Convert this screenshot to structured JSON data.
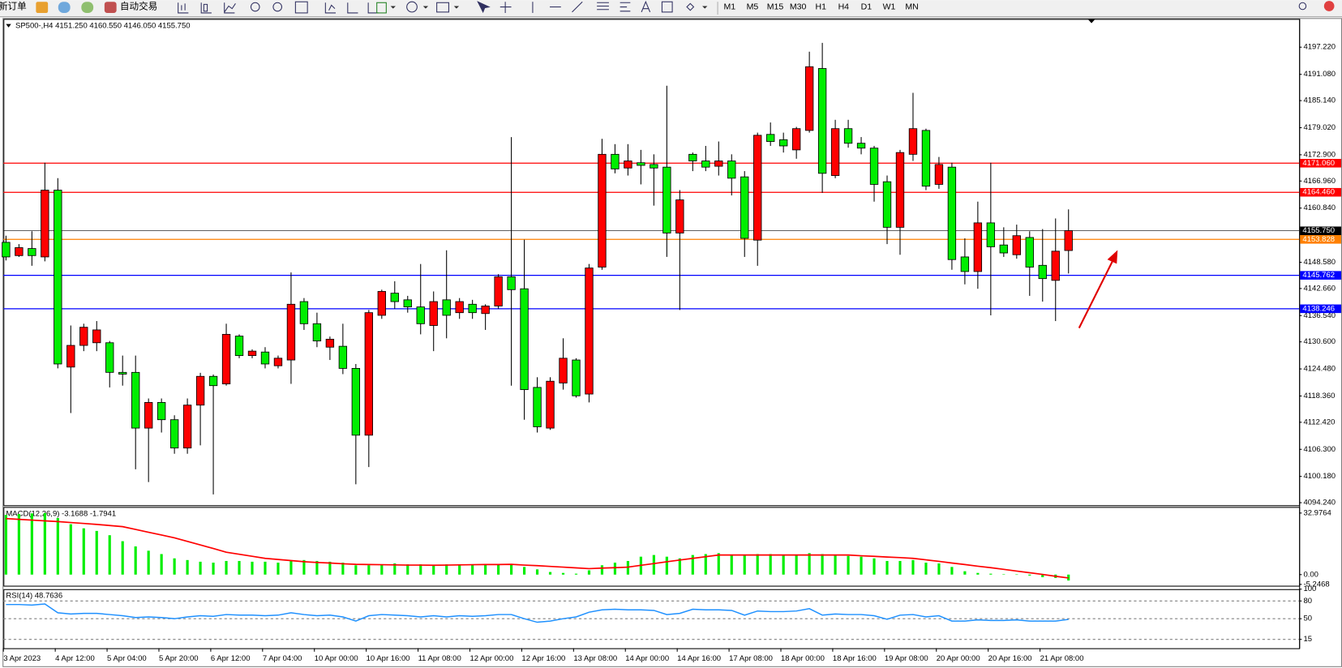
{
  "toolbar": {
    "items": [
      "新订单",
      "自动交易"
    ],
    "timeframes": [
      "M1",
      "M5",
      "M15",
      "M30",
      "H1",
      "H4",
      "D1",
      "W1",
      "MN"
    ]
  },
  "chart_data": [
    {
      "type": "candlestick",
      "title": "SP500-,H4  4151.250 4160.550 4146.050 4155.750",
      "up_color": "#ff0000",
      "down_color": "#00ee00",
      "x": [
        "3 Apr 2023",
        null,
        null,
        null,
        "4 Apr 12:00",
        null,
        null,
        null,
        "5 Apr 04:00",
        null,
        null,
        null,
        "5 Apr 20:00",
        null,
        null,
        null,
        "6 Apr 12:00",
        null,
        null,
        null,
        "7 Apr 04:00",
        null,
        null,
        null,
        "10 Apr 00:00",
        null,
        null,
        null,
        "10 Apr 16:00",
        null,
        null,
        null,
        "11 Apr 08:00",
        null,
        null,
        null,
        "12 Apr 00:00",
        null,
        null,
        null,
        "12 Apr 16:00",
        null,
        null,
        null,
        "13 Apr 08:00",
        null,
        null,
        null,
        "14 Apr 00:00",
        null,
        null,
        null,
        "14 Apr 16:00",
        null,
        null,
        null,
        "17 Apr 08:00",
        null,
        null,
        null,
        "18 Apr 00:00",
        null,
        null,
        null,
        "18 Apr 16:00",
        null,
        null,
        null,
        "19 Apr 08:00",
        null,
        null,
        null,
        "20 Apr 00:00",
        null,
        null,
        null,
        "20 Apr 16:00",
        null,
        null,
        null,
        "21 Apr 08:00",
        null,
        null
      ],
      "open": [
        4153.1,
        4150.1,
        4151.7,
        4149.8,
        4164.9,
        4124.9,
        4129.8,
        4130.4,
        4130.4,
        4123.7,
        4123.7,
        4111.1,
        4116.9,
        4113.0,
        4106.6,
        4116.3,
        4122.8,
        4121.1,
        4131.9,
        4127.5,
        4128.3,
        4125.2,
        4126.5,
        4139.7,
        4134.7,
        4129.4,
        4129.6,
        4124.6,
        4109.5,
        4136.6,
        4141.6,
        4140.1,
        4138.5,
        4134.3,
        4140.1,
        4137.2,
        4139.1,
        4137.0,
        4138.7,
        4145.3,
        4142.6,
        4120.3,
        4111.1,
        4121.3,
        4126.5,
        4118.8,
        4147.5,
        4173.0,
        4169.9,
        4171.1,
        4170.7,
        4170.1,
        4155.2,
        4173.0,
        4171.5,
        4170.3,
        4171.5,
        4167.9,
        4153.6,
        4177.5,
        4176.3,
        4174.0,
        4178.4,
        4192.4,
        4168.2,
        4178.8,
        4175.5,
        4174.4,
        4166.8,
        4156.5,
        4173.0,
        4178.4,
        4166.2,
        4170.1,
        4149.8,
        4146.5,
        4157.5,
        4152.5,
        4150.3,
        4154.2,
        4147.9,
        4144.5,
        4151.25
      ],
      "high": [
        4154.6,
        4152.7,
        4155.6,
        4171.1,
        4167.6,
        4134.3,
        4134.7,
        4135.3,
        4130.8,
        4127.5,
        4127.5,
        4117.8,
        4117.8,
        4114.0,
        4117.8,
        4123.6,
        4123.2,
        4134.7,
        4132.3,
        4128.9,
        4129.4,
        4127.5,
        4146.3,
        4140.5,
        4137.2,
        4131.8,
        4134.7,
        4125.6,
        4137.8,
        4142.4,
        4144.3,
        4141.0,
        4148.2,
        4142.0,
        4151.3,
        4140.5,
        4140.1,
        4139.1,
        4145.9,
        4176.9,
        4153.7,
        4122.6,
        4122.6,
        4131.4,
        4126.9,
        4148.2,
        4176.5,
        4175.3,
        4175.3,
        4174.0,
        4173.0,
        4188.5,
        4164.9,
        4173.4,
        4174.9,
        4175.9,
        4173.0,
        4169.2,
        4177.9,
        4180.2,
        4177.9,
        4179.2,
        4196.2,
        4198.2,
        4180.8,
        4180.8,
        4176.9,
        4174.9,
        4168.2,
        4174.0,
        4186.9,
        4178.8,
        4172.4,
        4171.1,
        4154.0,
        4162.3,
        4171.1,
        4156.5,
        4157.1,
        4155.6,
        4156.1,
        4158.5,
        4160.55
      ],
      "low": [
        4149.0,
        4149.8,
        4147.8,
        4148.8,
        4124.6,
        4114.5,
        4128.5,
        4128.5,
        4120.3,
        4120.7,
        4101.8,
        4098.9,
        4110.1,
        4105.3,
        4105.3,
        4107.2,
        4096.1,
        4120.7,
        4126.9,
        4126.9,
        4124.6,
        4124.6,
        4121.1,
        4133.3,
        4129.4,
        4126.5,
        4123.3,
        4098.4,
        4102.3,
        4135.8,
        4138.1,
        4137.2,
        4132.3,
        4128.5,
        4131.4,
        4135.8,
        4135.8,
        4133.3,
        4138.1,
        4120.7,
        4113.0,
        4110.1,
        4110.7,
        4119.8,
        4118.0,
        4116.9,
        4146.9,
        4168.7,
        4168.2,
        4166.2,
        4161.4,
        4149.8,
        4137.8,
        4169.2,
        4169.2,
        4168.2,
        4163.7,
        4149.8,
        4147.8,
        4174.9,
        4173.4,
        4172.0,
        4177.9,
        4164.3,
        4167.6,
        4174.5,
        4173.0,
        4162.3,
        4152.7,
        4150.3,
        4171.5,
        4164.9,
        4165.2,
        4146.9,
        4143.6,
        4142.6,
        4136.6,
        4149.8,
        4149.4,
        4141.0,
        4139.7,
        4135.3,
        4146.05
      ],
      "close": [
        4149.8,
        4151.9,
        4150.1,
        4164.9,
        4125.6,
        4129.8,
        4133.9,
        4133.3,
        4123.7,
        4123.3,
        4111.1,
        4116.9,
        4113.0,
        4106.6,
        4116.3,
        4122.8,
        4120.7,
        4132.3,
        4127.5,
        4128.5,
        4125.6,
        4126.9,
        4139.1,
        4134.7,
        4130.8,
        4131.2,
        4124.6,
        4109.5,
        4137.2,
        4142.0,
        4139.7,
        4138.5,
        4134.7,
        4139.7,
        4136.6,
        4139.7,
        4137.2,
        4138.7,
        4145.3,
        4142.4,
        4119.8,
        4111.4,
        4121.7,
        4126.9,
        4118.4,
        4147.3,
        4173.0,
        4169.7,
        4171.5,
        4170.5,
        4169.9,
        4155.2,
        4162.7,
        4171.5,
        4170.1,
        4171.5,
        4167.6,
        4154.0,
        4177.3,
        4175.9,
        4174.9,
        4178.8,
        4192.8,
        4168.7,
        4178.8,
        4175.5,
        4174.4,
        4166.2,
        4156.5,
        4173.4,
        4178.8,
        4165.8,
        4170.7,
        4149.2,
        4146.5,
        4157.5,
        4152.1,
        4150.7,
        4154.6,
        4147.5,
        4144.9,
        4151.1,
        4155.75
      ],
      "ylim": [
        4093.66,
        4203.61
      ],
      "yticks": [
        {
          "value": 4197.22,
          "label": "4197.220"
        },
        {
          "value": 4191.08,
          "label": "4191.080"
        },
        {
          "value": 4185.14,
          "label": "4185.140"
        },
        {
          "value": 4179.02,
          "label": "4179.020"
        },
        {
          "value": 4172.9,
          "label": "4172.900"
        },
        {
          "value": 4166.96,
          "label": "4166.960"
        },
        {
          "value": 4160.84,
          "label": "4160.840"
        },
        {
          "value": 4148.58,
          "label": "4148.580"
        },
        {
          "value": 4142.66,
          "label": "4142.660"
        },
        {
          "value": 4136.54,
          "label": "4136.540"
        },
        {
          "value": 4130.6,
          "label": "4130.600"
        },
        {
          "value": 4124.48,
          "label": "4124.480"
        },
        {
          "value": 4118.36,
          "label": "4118.360"
        },
        {
          "value": 4112.42,
          "label": "4112.420"
        },
        {
          "value": 4106.3,
          "label": "4106.300"
        },
        {
          "value": 4100.18,
          "label": "4100.180"
        },
        {
          "value": 4094.24,
          "label": "4094.240"
        }
      ],
      "hlines": [
        {
          "value": 4155.75,
          "label": "4155.750",
          "color": "#000000"
        },
        {
          "value": 4171.06,
          "label": "4171.060",
          "color": "#ff0000"
        },
        {
          "value": 4164.46,
          "label": "4164.460",
          "color": "#ff0000"
        },
        {
          "value": 4153.828,
          "label": "4153.828",
          "color": "#ff8000"
        },
        {
          "value": 4145.762,
          "label": "4145.762",
          "color": "#0000ff"
        },
        {
          "value": 4138.246,
          "label": "4138.246",
          "color": "#0000ff"
        }
      ]
    },
    {
      "type": "macd",
      "title": "MACD(12,26,9) -3.1688 -1.7941",
      "histogram_color": "#00ee00",
      "signal_color": "#ff0000",
      "histogram": [
        32,
        32.5,
        32.8,
        33,
        30.3,
        27,
        24.8,
        23.4,
        21.1,
        17.9,
        15.1,
        12.8,
        11,
        8.7,
        7.8,
        6.9,
        6.4,
        7.3,
        7.3,
        6.9,
        6.9,
        6.4,
        7.3,
        7.8,
        7.3,
        6.9,
        6.4,
        5,
        5,
        5.5,
        6,
        5.5,
        5.5,
        5,
        5.5,
        5.5,
        5.5,
        5.5,
        5.5,
        5.5,
        4.1,
        2.8,
        1.4,
        0.9,
        0.5,
        2.3,
        5,
        6.4,
        7.3,
        9.6,
        10.5,
        9.6,
        8.7,
        10.5,
        11,
        11.5,
        10.5,
        10.5,
        11,
        11,
        10.5,
        10.5,
        11.5,
        11,
        10.5,
        10,
        9.6,
        8.7,
        7.3,
        7.3,
        7.8,
        6.4,
        6,
        4.1,
        1.8,
        0.9,
        0.5,
        0.2,
        0.1,
        -0.5,
        -1.4,
        -1.8,
        -3.1688
      ],
      "signal": [
        30,
        29.6,
        29.2,
        28.8,
        28.4,
        27.9,
        27.4,
        26.9,
        26.3,
        25.7,
        24.2,
        22.7,
        21.2,
        19.7,
        17.8,
        15.9,
        14,
        12,
        10.9,
        9.8,
        8.7,
        8.1,
        7.5,
        6.9,
        6.5,
        6.2,
        5.8,
        5.5,
        5.4,
        5.3,
        5.2,
        5.1,
        5.1,
        5,
        5.1,
        5.2,
        5.3,
        5.4,
        5.4,
        5.5,
        5.1,
        4.8,
        4.4,
        4,
        3.6,
        3.2,
        3.5,
        3.7,
        4,
        5,
        5.9,
        6.9,
        7.8,
        8.7,
        9.6,
        10.5,
        10.5,
        10.5,
        10.5,
        10.5,
        10.5,
        10.5,
        10.5,
        10.5,
        10.5,
        10.5,
        10.1,
        9.8,
        9.4,
        9.1,
        8.7,
        7.9,
        7.1,
        6.2,
        5.4,
        4.5,
        3.7,
        2.8,
        1.9,
        1,
        0.1,
        -0.9,
        -1.7941
      ],
      "ylim": [
        -5.96,
        36.24
      ],
      "yticks": [
        32.9764,
        {
          "value": 0,
          "label": "0.00"
        },
        -5.2468
      ]
    },
    {
      "type": "line",
      "title": "RSI(14) 48.7636",
      "color": "#1e90ff",
      "values": [
        74,
        74,
        73,
        75,
        60,
        58,
        59,
        59,
        57,
        55,
        52,
        53,
        52,
        50,
        53,
        55,
        54,
        57,
        56,
        56,
        55,
        56,
        60,
        57,
        55,
        56,
        53,
        46,
        55,
        57,
        56,
        55,
        53,
        55,
        53,
        55,
        54,
        55,
        57,
        57,
        50,
        44,
        46,
        50,
        53,
        61,
        65,
        66,
        65,
        65,
        64,
        57,
        59,
        66,
        65,
        65,
        64,
        56,
        63,
        62,
        62,
        63,
        67,
        56,
        58,
        57,
        57,
        55,
        49,
        56,
        57,
        53,
        55,
        46,
        46,
        48,
        47,
        47,
        48,
        46,
        46,
        46,
        48.7636
      ],
      "ylim": [
        0,
        100
      ],
      "yticks": [
        100,
        80,
        50,
        15
      ]
    }
  ]
}
